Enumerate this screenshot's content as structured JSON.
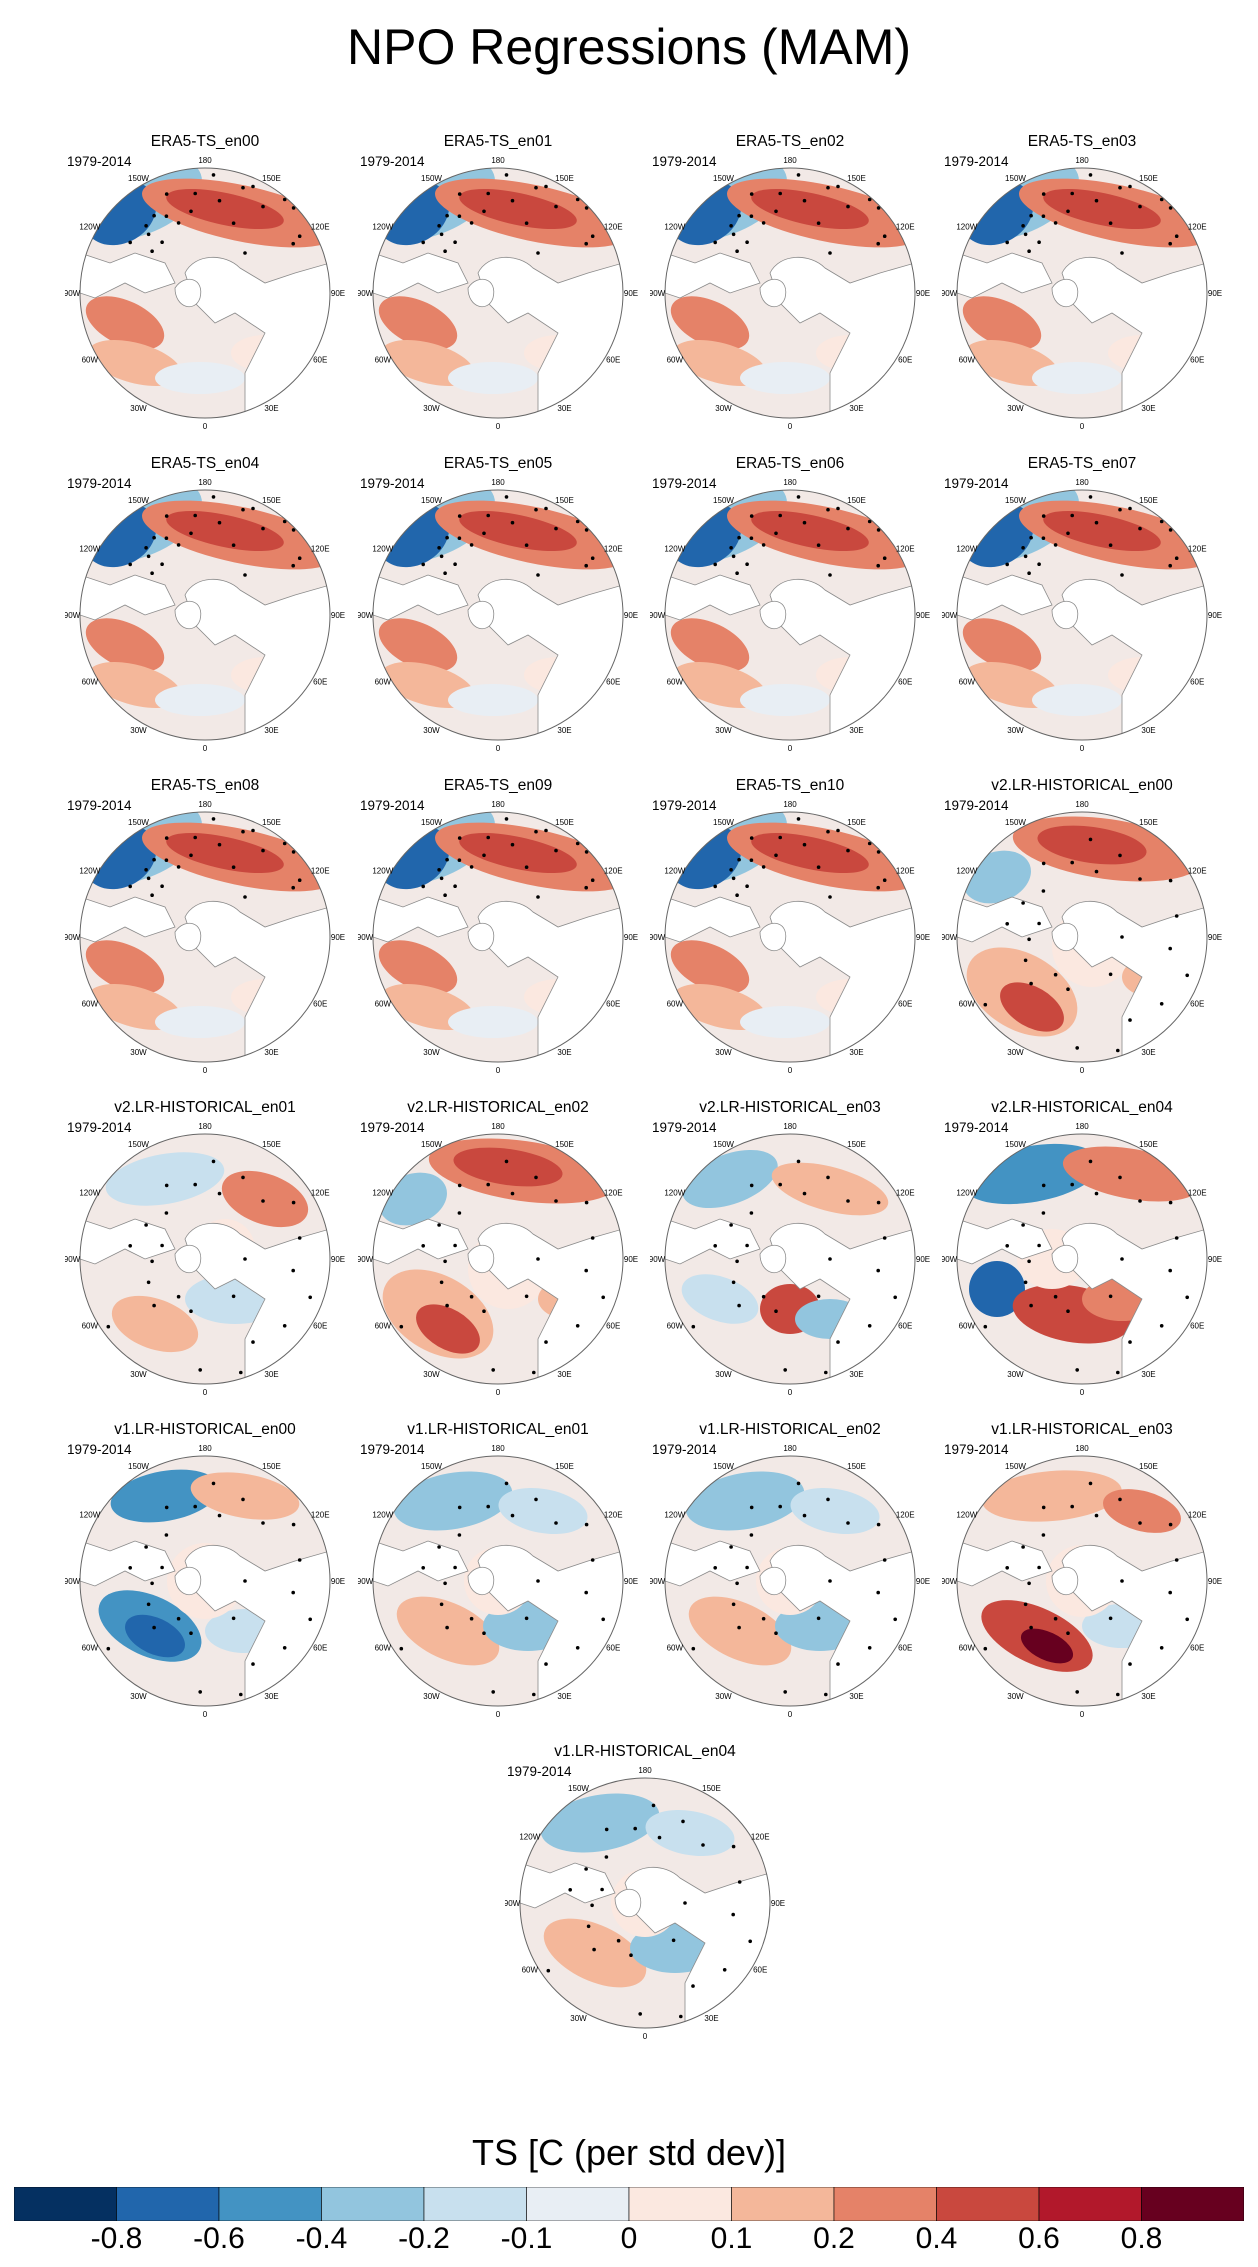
{
  "title": "NPO Regressions (MAM)",
  "period": "1979-2014",
  "lon_labels": [
    "180",
    "150E",
    "120E",
    "90E",
    "60E",
    "30E",
    "0",
    "30W",
    "60W",
    "90W",
    "120W",
    "150W"
  ],
  "panels": [
    {
      "title": "ERA5-TS_en00",
      "pattern": "era5"
    },
    {
      "title": "ERA5-TS_en01",
      "pattern": "era5"
    },
    {
      "title": "ERA5-TS_en02",
      "pattern": "era5"
    },
    {
      "title": "ERA5-TS_en03",
      "pattern": "era5"
    },
    {
      "title": "ERA5-TS_en04",
      "pattern": "era5"
    },
    {
      "title": "ERA5-TS_en05",
      "pattern": "era5"
    },
    {
      "title": "ERA5-TS_en06",
      "pattern": "era5"
    },
    {
      "title": "ERA5-TS_en07",
      "pattern": "era5"
    },
    {
      "title": "ERA5-TS_en08",
      "pattern": "era5"
    },
    {
      "title": "ERA5-TS_en09",
      "pattern": "era5"
    },
    {
      "title": "ERA5-TS_en10",
      "pattern": "era5"
    },
    {
      "title": "v2.LR-HISTORICAL_en00",
      "pattern": "warm-pacific"
    },
    {
      "title": "v2.LR-HISTORICAL_en01",
      "pattern": "weak"
    },
    {
      "title": "v2.LR-HISTORICAL_en02",
      "pattern": "warm-pacific"
    },
    {
      "title": "v2.LR-HISTORICAL_en03",
      "pattern": "mixed"
    },
    {
      "title": "v2.LR-HISTORICAL_en04",
      "pattern": "dipole"
    },
    {
      "title": "v1.LR-HISTORICAL_en00",
      "pattern": "cool-atlantic"
    },
    {
      "title": "v1.LR-HISTORICAL_en01",
      "pattern": "cool"
    },
    {
      "title": "v1.LR-HISTORICAL_en02",
      "pattern": "cool"
    },
    {
      "title": "v1.LR-HISTORICAL_en03",
      "pattern": "warm-atlantic"
    },
    {
      "title": "v1.LR-HISTORICAL_en04",
      "pattern": "cool"
    }
  ],
  "colorbar": {
    "title": "TS [C (per std dev)]",
    "colors": [
      "#053061",
      "#2166ac",
      "#4393c3",
      "#92c5de",
      "#c8e0ee",
      "#e8eef4",
      "#fbe8e0",
      "#f4b79a",
      "#e58268",
      "#c9483e",
      "#b2182b",
      "#67001f"
    ],
    "ticks": [
      "-0.8",
      "-0.6",
      "-0.4",
      "-0.2",
      "-0.1",
      "0",
      "0.1",
      "0.2",
      "0.4",
      "0.6",
      "0.8"
    ]
  }
}
